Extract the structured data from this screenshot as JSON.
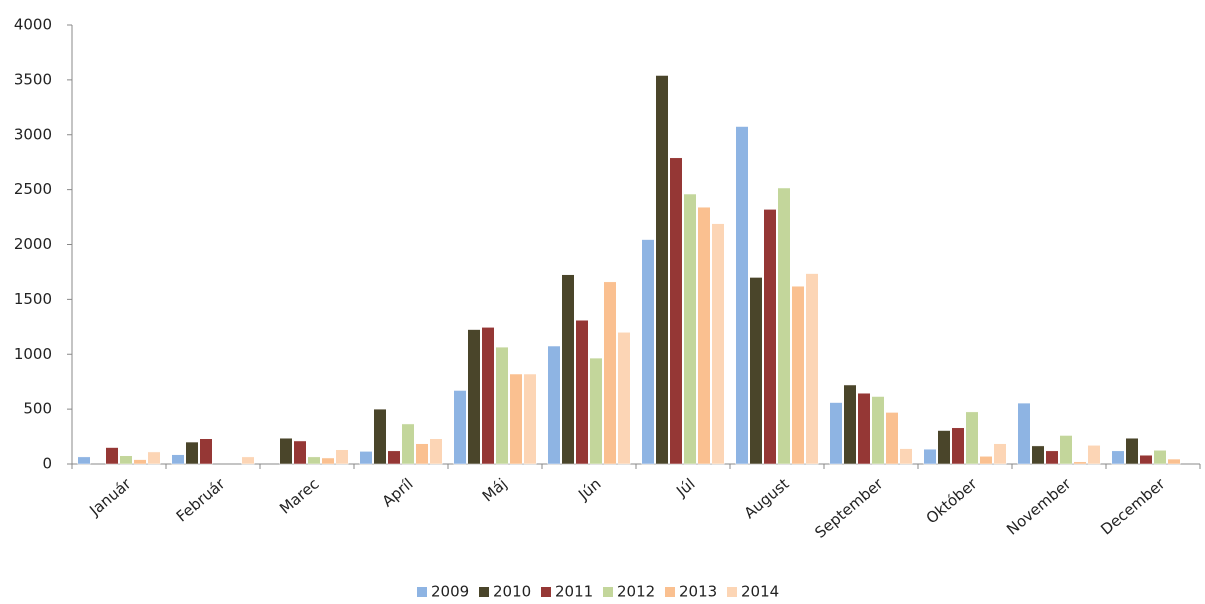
{
  "chart_data": {
    "type": "bar",
    "categories": [
      "Január",
      "Február",
      "Marec",
      "Apríl",
      "Máj",
      "Jún",
      "Júl",
      "August",
      "September",
      "Október",
      "November",
      "December"
    ],
    "series": [
      {
        "name": "2009",
        "color": "#8eb4e3",
        "values": [
          65,
          85,
          0,
          115,
          670,
          1075,
          2045,
          3075,
          560,
          135,
          555,
          120
        ]
      },
      {
        "name": "2010",
        "color": "#4a452a",
        "values": [
          0,
          200,
          235,
          500,
          1225,
          1725,
          3540,
          1700,
          720,
          305,
          165,
          235
        ]
      },
      {
        "name": "2011",
        "color": "#953735",
        "values": [
          150,
          230,
          210,
          120,
          1245,
          1310,
          2790,
          2320,
          645,
          330,
          120,
          80
        ]
      },
      {
        "name": "2012",
        "color": "#c3d69b",
        "values": [
          75,
          0,
          65,
          365,
          1065,
          965,
          2460,
          2515,
          615,
          475,
          260,
          125
        ]
      },
      {
        "name": "2013",
        "color": "#fac090",
        "values": [
          40,
          0,
          55,
          185,
          820,
          1660,
          2340,
          1620,
          470,
          70,
          20,
          45
        ]
      },
      {
        "name": "2014",
        "color": "#fcd5b5",
        "values": [
          110,
          65,
          130,
          230,
          820,
          1200,
          2190,
          1735,
          140,
          185,
          170,
          0
        ]
      }
    ],
    "ylim": [
      0,
      4000
    ],
    "yticks": [
      0,
      500,
      1000,
      1500,
      2000,
      2500,
      3000,
      3500,
      4000
    ],
    "grid": false,
    "legend": "bottom"
  }
}
